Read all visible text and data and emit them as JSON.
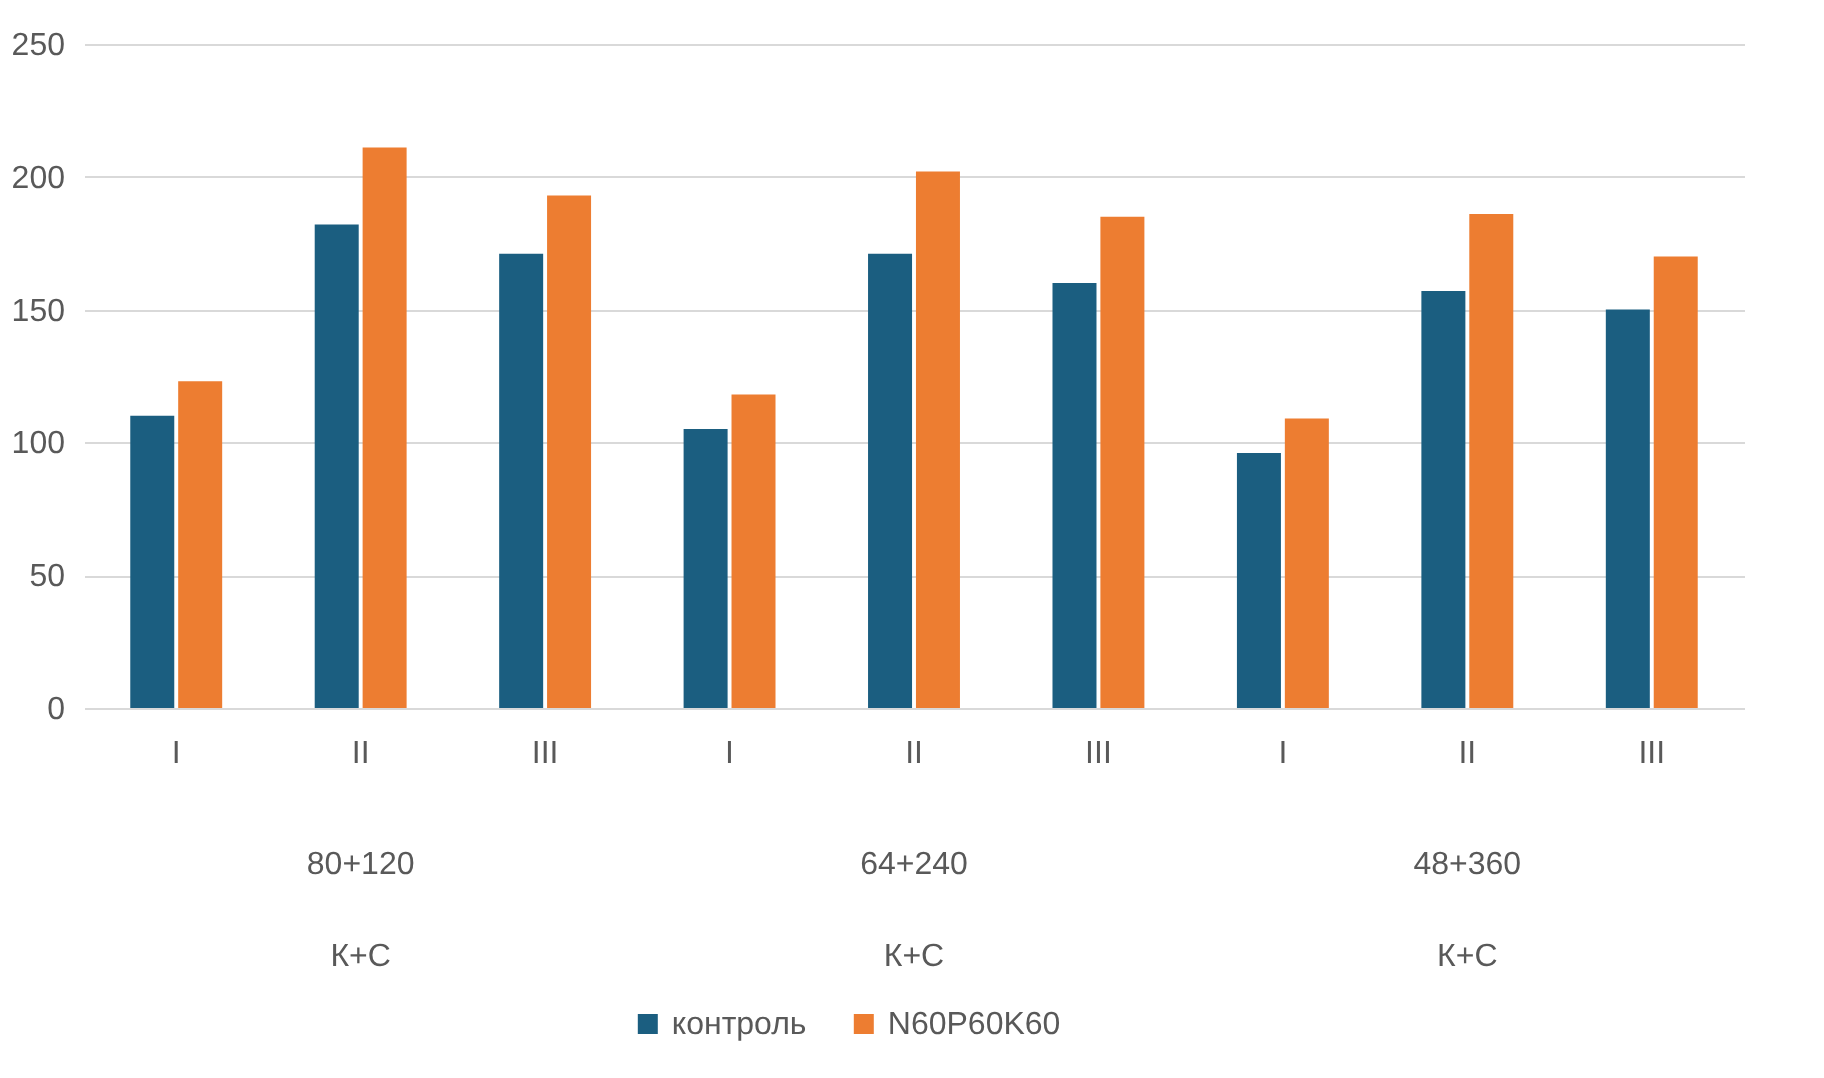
{
  "chart_data": {
    "type": "bar",
    "categories": [
      "I",
      "II",
      "III",
      "I",
      "II",
      "III",
      "I",
      "II",
      "III"
    ],
    "series": [
      {
        "name": "контроль",
        "color": "#1b5e80",
        "values": [
          110,
          182,
          171,
          105,
          171,
          160,
          96,
          157,
          150
        ]
      },
      {
        "name": "N60P60K60",
        "color": "#ed7d31",
        "values": [
          123,
          211,
          193,
          118,
          202,
          185,
          109,
          186,
          170
        ]
      }
    ],
    "annotations": [
      "80+120",
      "64+240",
      "48+360",
      "К+С",
      "К+С",
      "К+С"
    ],
    "ylim": [
      0,
      250
    ],
    "yticks": [
      0,
      50,
      100,
      150,
      200,
      250
    ],
    "grid": "y",
    "legend": "bottom"
  }
}
